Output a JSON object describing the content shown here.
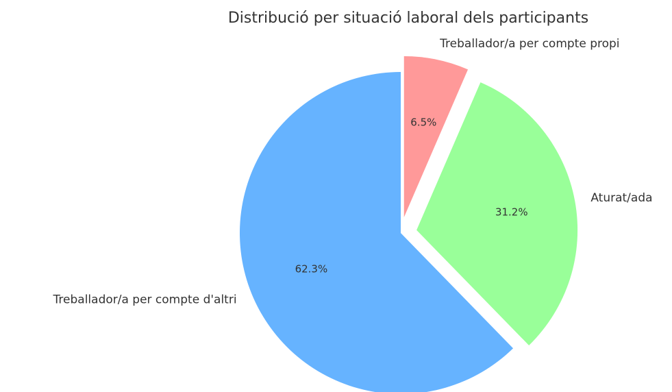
{
  "chart_data": {
    "type": "pie",
    "title": "Distribució per situació laboral dels participants",
    "categories": [
      "Treballador/a per compte d'altri",
      "Aturat/ada",
      "Treballador/a per compte propi"
    ],
    "values": [
      62.3,
      31.2,
      6.5
    ],
    "value_labels": [
      "62.3%",
      "31.2%",
      "6.5%"
    ],
    "colors": [
      "#66b3ff",
      "#99ff99",
      "#ff9999"
    ],
    "explode": [
      0,
      0.1,
      0.1
    ],
    "startangle": 90
  }
}
